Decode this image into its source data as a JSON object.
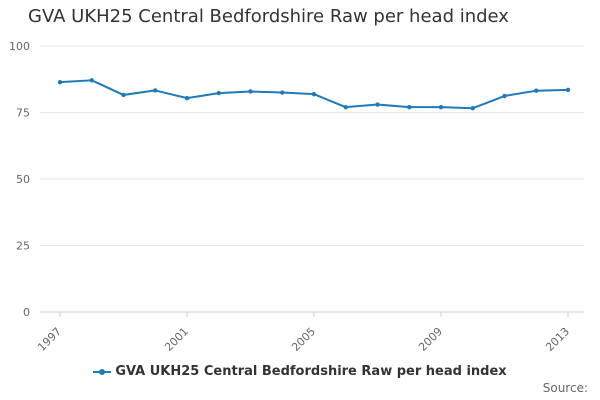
{
  "chart_data": {
    "type": "line",
    "title": "GVA UKH25 Central Bedfordshire Raw per head index",
    "x": [
      1997,
      1998,
      1999,
      2000,
      2001,
      2002,
      2003,
      2004,
      2005,
      2006,
      2007,
      2008,
      2009,
      2010,
      2011,
      2012,
      2013
    ],
    "x_tick_labels": [
      "1997",
      "2001",
      "2005",
      "2009",
      "2013"
    ],
    "y_ticks": [
      0,
      25,
      50,
      75,
      100
    ],
    "ylim": [
      0,
      100
    ],
    "grid": "horizontal",
    "legend_position": "bottom",
    "series": [
      {
        "name": "GVA UKH25 Central Bedfordshire Raw per head index",
        "color": "#1f7ab8",
        "values": [
          86.4,
          87.1,
          81.6,
          83.3,
          80.4,
          82.3,
          82.9,
          82.5,
          81.9,
          77.0,
          78.0,
          77.0,
          77.0,
          76.6,
          81.2,
          83.2,
          83.5
        ]
      }
    ]
  },
  "source_label": "Source:"
}
